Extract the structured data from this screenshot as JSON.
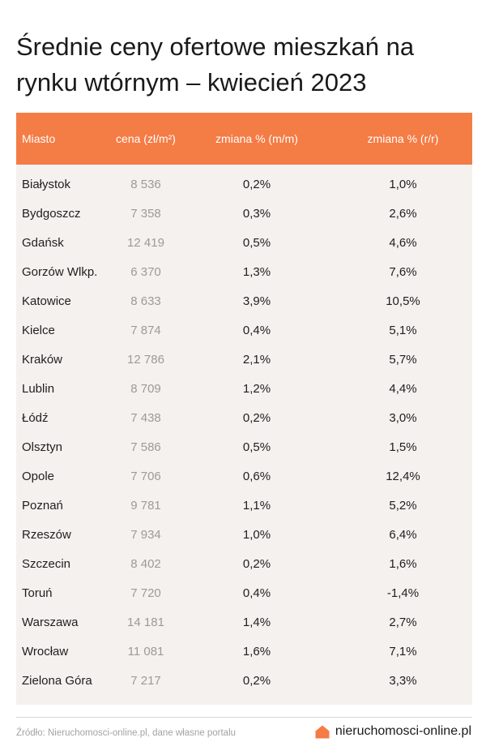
{
  "title": "Średnie ceny ofertowe mieszkań na rynku wtórnym – kwiecień 2023",
  "table": {
    "headers": [
      "Miasto",
      "cena (zł/m²)",
      "zmiana % (m/m)",
      "zmiana % (r/r)"
    ],
    "rows": [
      [
        "Białystok",
        "8 536",
        "0,2%",
        "1,0%"
      ],
      [
        "Bydgoszcz",
        "7 358",
        "0,3%",
        "2,6%"
      ],
      [
        "Gdańsk",
        "12 419",
        "0,5%",
        "4,6%"
      ],
      [
        "Gorzów Wlkp.",
        "6 370",
        "1,3%",
        "7,6%"
      ],
      [
        "Katowice",
        "8 633",
        "3,9%",
        "10,5%"
      ],
      [
        "Kielce",
        "7 874",
        "0,4%",
        "5,1%"
      ],
      [
        "Kraków",
        "12 786",
        "2,1%",
        "5,7%"
      ],
      [
        "Lublin",
        "8 709",
        "1,2%",
        "4,4%"
      ],
      [
        "Łódź",
        "7 438",
        "0,2%",
        "3,0%"
      ],
      [
        "Olsztyn",
        "7 586",
        "0,5%",
        "1,5%"
      ],
      [
        "Opole",
        "7 706",
        "0,6%",
        "12,4%"
      ],
      [
        "Poznań",
        "9 781",
        "1,1%",
        "5,2%"
      ],
      [
        "Rzeszów",
        "7 934",
        "1,0%",
        "6,4%"
      ],
      [
        "Szczecin",
        "8 402",
        "0,2%",
        "1,6%"
      ],
      [
        "Toruń",
        "7 720",
        "0,4%",
        "-1,4%"
      ],
      [
        "Warszawa",
        "14 181",
        "1,4%",
        "2,7%"
      ],
      [
        "Wrocław",
        "11 081",
        "1,6%",
        "7,1%"
      ],
      [
        "Zielona Góra",
        "7 217",
        "0,2%",
        "3,3%"
      ]
    ]
  },
  "footer": {
    "source": "Źródło: Nieruchomosci-online.pl, dane własne portalu",
    "brand": "nieruchomosci-online.pl",
    "brand_icon": "house-icon"
  },
  "colors": {
    "header_bg": "#f47c45",
    "table_bg": "#f4f1ee",
    "price_text": "#9d9a97"
  }
}
